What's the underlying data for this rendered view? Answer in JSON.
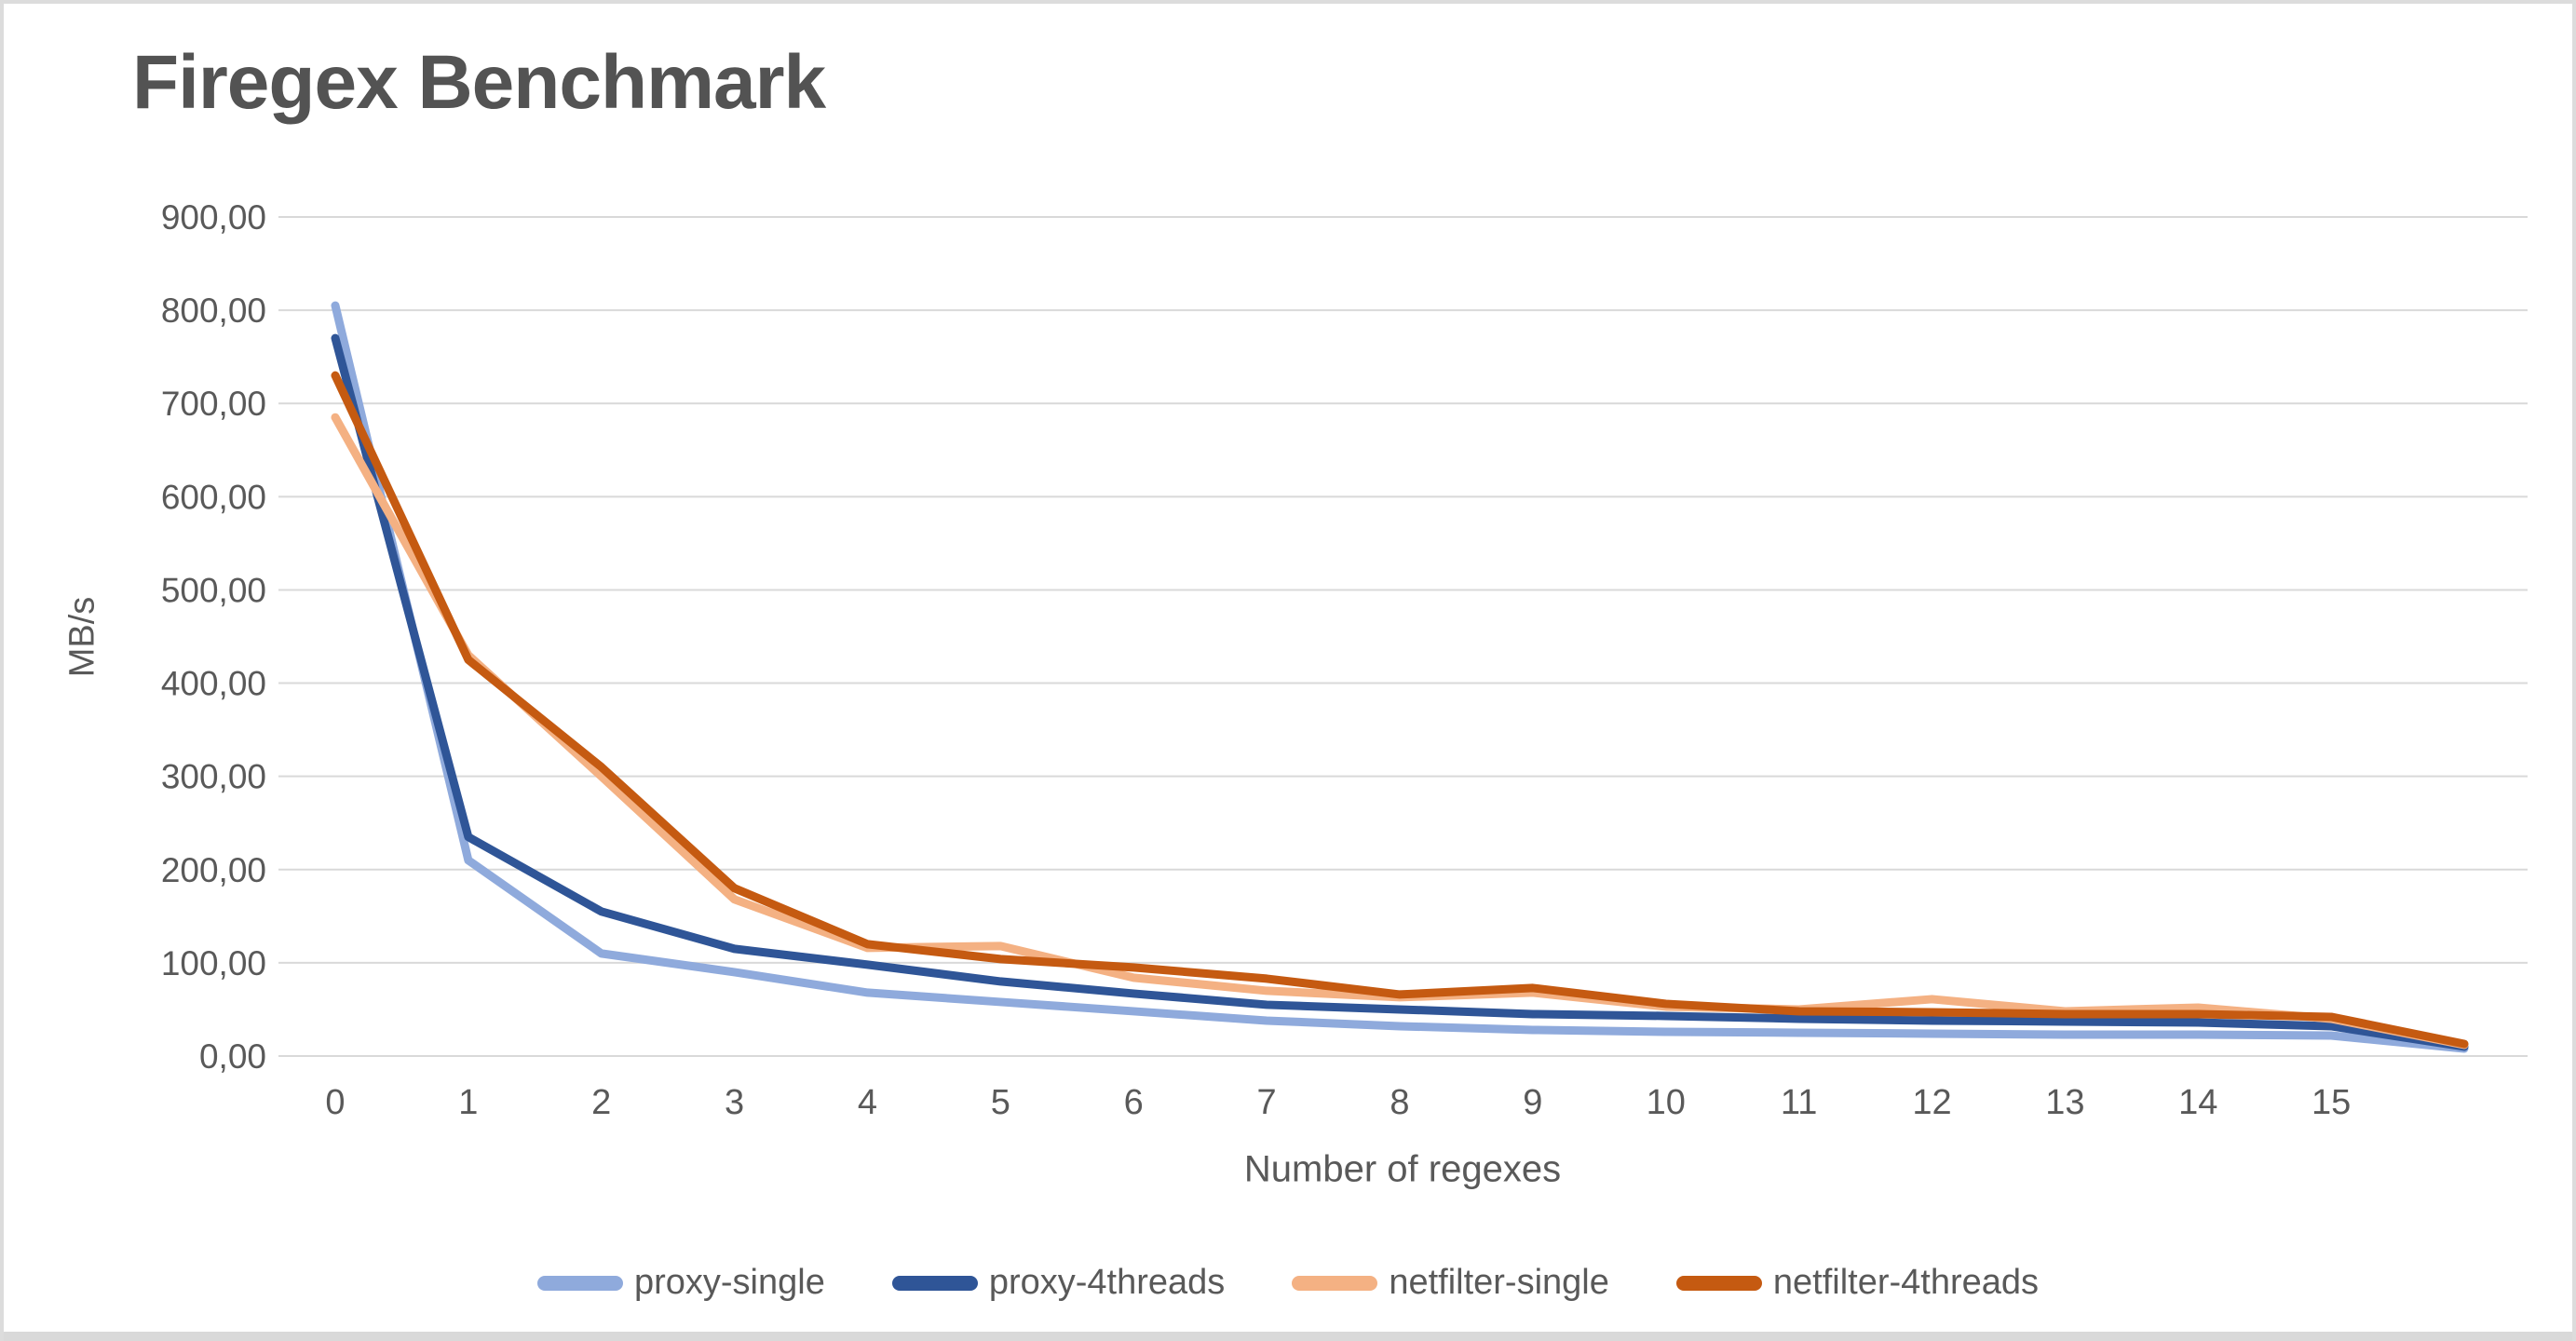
{
  "window": {
    "border_color": "#dcdcdc",
    "bottom_edge_color": "#d9d9d9",
    "background": "#ffffff"
  },
  "chart_data": {
    "type": "line",
    "title": "Firegex Benchmark",
    "xlabel": "Number of regexes",
    "ylabel": "MB/s",
    "grid": "horizontal",
    "gridline_color": "#D9D9D9",
    "text_color": "#595959",
    "title_color": "#535353",
    "legend_position": "bottom",
    "ylim": [
      0,
      900
    ],
    "x": [
      0,
      1,
      2,
      3,
      4,
      5,
      6,
      7,
      8,
      9,
      10,
      11,
      12,
      13,
      14,
      15,
      16
    ],
    "x_tick_labels": [
      "0",
      "1",
      "2",
      "3",
      "4",
      "5",
      "6",
      "7",
      "8",
      "9",
      "10",
      "11",
      "12",
      "13",
      "14",
      "15"
    ],
    "y_ticks": [
      {
        "value": 0,
        "label": "0,00"
      },
      {
        "value": 100,
        "label": "100,00"
      },
      {
        "value": 200,
        "label": "200,00"
      },
      {
        "value": 300,
        "label": "300,00"
      },
      {
        "value": 400,
        "label": "400,00"
      },
      {
        "value": 500,
        "label": "500,00"
      },
      {
        "value": 600,
        "label": "600,00"
      },
      {
        "value": 700,
        "label": "700,00"
      },
      {
        "value": 800,
        "label": "800,00"
      },
      {
        "value": 900,
        "label": "900,00"
      }
    ],
    "series": [
      {
        "name": "proxy-single",
        "color": "#8FAADC",
        "values": [
          805,
          210,
          110,
          90,
          68,
          58,
          48,
          38,
          32,
          28,
          26,
          25,
          24,
          23,
          23,
          22,
          8
        ]
      },
      {
        "name": "proxy-4threads",
        "color": "#2F5597",
        "values": [
          770,
          235,
          155,
          115,
          98,
          80,
          67,
          55,
          50,
          45,
          43,
          40,
          38,
          37,
          36,
          32,
          10
        ]
      },
      {
        "name": "netfilter-single",
        "color": "#F4B183",
        "values": [
          685,
          430,
          300,
          168,
          116,
          118,
          84,
          70,
          63,
          68,
          53,
          50,
          61,
          48,
          52,
          40,
          12
        ]
      },
      {
        "name": "netfilter-4threads",
        "color": "#C55A11",
        "values": [
          730,
          425,
          310,
          180,
          120,
          104,
          95,
          83,
          66,
          73,
          56,
          48,
          47,
          45,
          45,
          42,
          13
        ]
      }
    ]
  }
}
